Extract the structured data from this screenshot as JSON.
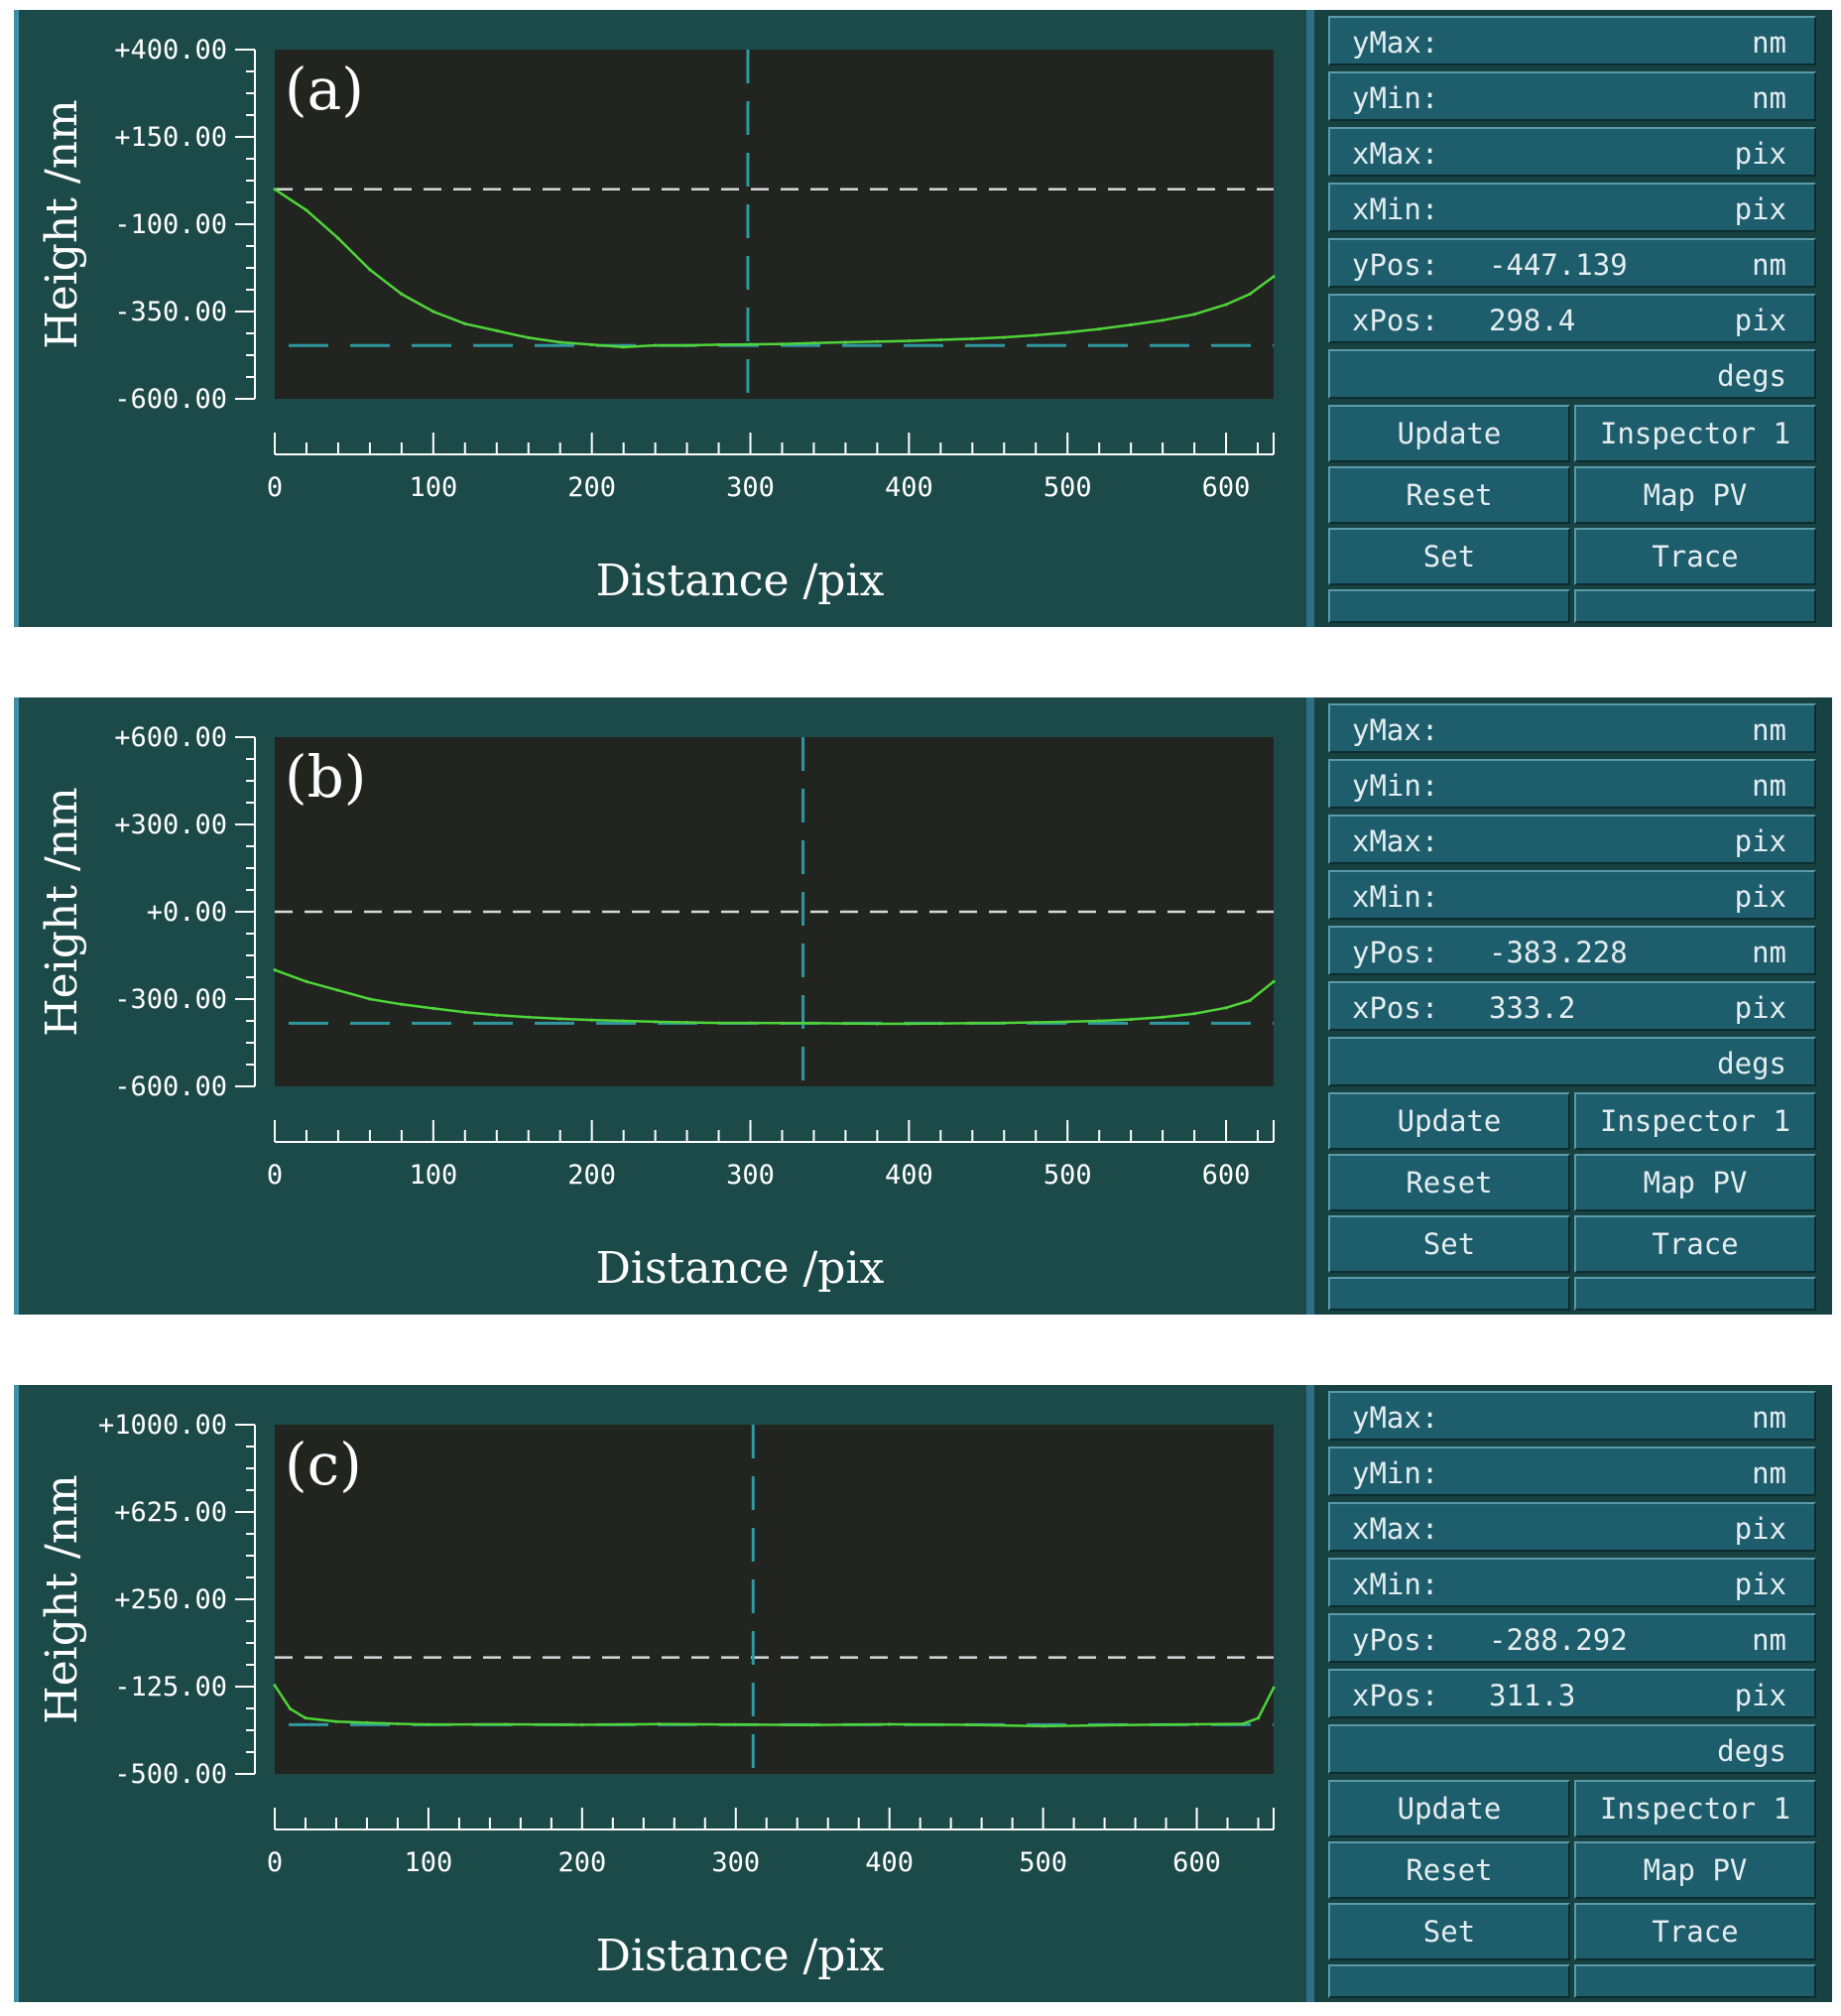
{
  "chart_data": [
    {
      "type": "line",
      "panel_label": "(a)",
      "xlabel": "Distance /pix",
      "ylabel": "Height /nm",
      "xlim": [
        0,
        630
      ],
      "ylim": [
        -600,
        400
      ],
      "x_ticks": [
        "0",
        "100",
        "200",
        "300",
        "400",
        "500",
        "600"
      ],
      "y_ticks": [
        "+400.00",
        "+150.00",
        "-100.00",
        "-350.00",
        "-600.00"
      ],
      "y_tick_values": [
        400,
        150,
        -100,
        -350,
        -600
      ],
      "ref_line_y": 0,
      "cursor": {
        "x": 298.4,
        "y": -447.139
      },
      "profile": {
        "x": [
          0,
          20,
          40,
          60,
          80,
          100,
          120,
          140,
          160,
          180,
          200,
          220,
          240,
          260,
          280,
          300,
          320,
          340,
          360,
          380,
          400,
          420,
          440,
          460,
          480,
          500,
          520,
          540,
          560,
          580,
          600,
          615,
          630
        ],
        "y": [
          0,
          -60,
          -140,
          -230,
          -300,
          -350,
          -385,
          -405,
          -425,
          -438,
          -445,
          -452,
          -447,
          -447,
          -445,
          -444,
          -443,
          -440,
          -438,
          -436,
          -434,
          -431,
          -428,
          -424,
          -418,
          -410,
          -400,
          -388,
          -375,
          -358,
          -330,
          -300,
          -250
        ]
      }
    },
    {
      "type": "line",
      "panel_label": "(b)",
      "xlabel": "Distance /pix",
      "ylabel": "Height /nm",
      "xlim": [
        0,
        630
      ],
      "ylim": [
        -600,
        600
      ],
      "x_ticks": [
        "0",
        "100",
        "200",
        "300",
        "400",
        "500",
        "600"
      ],
      "y_ticks": [
        "+600.00",
        "+300.00",
        "+0.00",
        "-300.00",
        "-600.00"
      ],
      "y_tick_values": [
        600,
        300,
        0,
        -300,
        -600
      ],
      "ref_line_y": 0,
      "cursor": {
        "x": 333.2,
        "y": -383.228
      },
      "profile": {
        "x": [
          0,
          20,
          40,
          60,
          80,
          100,
          120,
          140,
          160,
          180,
          200,
          220,
          240,
          260,
          280,
          300,
          320,
          340,
          360,
          380,
          400,
          420,
          440,
          460,
          480,
          500,
          520,
          540,
          560,
          580,
          600,
          615,
          630
        ],
        "y": [
          -200,
          -240,
          -270,
          -300,
          -318,
          -332,
          -345,
          -355,
          -362,
          -368,
          -372,
          -375,
          -378,
          -380,
          -382,
          -382,
          -383,
          -383,
          -384,
          -385,
          -385,
          -384,
          -383,
          -382,
          -380,
          -378,
          -375,
          -370,
          -362,
          -350,
          -330,
          -305,
          -240
        ]
      }
    },
    {
      "type": "line",
      "panel_label": "(c)",
      "xlabel": "Distance /pix",
      "ylabel": "Height /nm",
      "xlim": [
        0,
        650
      ],
      "ylim": [
        -500,
        1000
      ],
      "x_ticks": [
        "0",
        "100",
        "200",
        "300",
        "400",
        "500",
        "600"
      ],
      "y_ticks": [
        "+1000.00",
        "+625.00",
        "+250.00",
        "-125.00",
        "-500.00"
      ],
      "y_tick_values": [
        1000,
        625,
        250,
        -125,
        -500
      ],
      "ref_line_y": 0,
      "cursor": {
        "x": 311.3,
        "y": -288.292
      },
      "profile": {
        "x": [
          0,
          10,
          20,
          40,
          60,
          80,
          100,
          150,
          200,
          250,
          300,
          350,
          400,
          450,
          500,
          550,
          600,
          630,
          640,
          650
        ],
        "y": [
          -120,
          -220,
          -260,
          -275,
          -280,
          -285,
          -288,
          -287,
          -289,
          -286,
          -288,
          -290,
          -287,
          -289,
          -295,
          -290,
          -287,
          -285,
          -260,
          -130
        ]
      }
    }
  ],
  "side_panels": [
    {
      "rows": [
        {
          "label": "yMax:",
          "value": "",
          "unit": "nm"
        },
        {
          "label": "yMin:",
          "value": "",
          "unit": "nm"
        },
        {
          "label": "xMax:",
          "value": "",
          "unit": "pix"
        },
        {
          "label": "xMin:",
          "value": "",
          "unit": "pix"
        },
        {
          "label": "yPos:",
          "value": "-447.139",
          "unit": "nm"
        },
        {
          "label": "xPos:",
          "value": "298.4",
          "unit": "pix"
        },
        {
          "label": "",
          "value": "",
          "unit": "degs"
        }
      ],
      "buttons": [
        [
          "Update",
          "Inspector 1"
        ],
        [
          "Reset",
          "Map PV"
        ],
        [
          "Set",
          "Trace"
        ]
      ]
    },
    {
      "rows": [
        {
          "label": "yMax:",
          "value": "",
          "unit": "nm"
        },
        {
          "label": "yMin:",
          "value": "",
          "unit": "nm"
        },
        {
          "label": "xMax:",
          "value": "",
          "unit": "pix"
        },
        {
          "label": "xMin:",
          "value": "",
          "unit": "pix"
        },
        {
          "label": "yPos:",
          "value": "-383.228",
          "unit": "nm"
        },
        {
          "label": "xPos:",
          "value": "333.2",
          "unit": "pix"
        },
        {
          "label": "",
          "value": "",
          "unit": "degs"
        }
      ],
      "buttons": [
        [
          "Update",
          "Inspector 1"
        ],
        [
          "Reset",
          "Map PV"
        ],
        [
          "Set",
          "Trace"
        ]
      ]
    },
    {
      "rows": [
        {
          "label": "yMax:",
          "value": "",
          "unit": "nm"
        },
        {
          "label": "yMin:",
          "value": "",
          "unit": "nm"
        },
        {
          "label": "xMax:",
          "value": "",
          "unit": "pix"
        },
        {
          "label": "xMin:",
          "value": "",
          "unit": "pix"
        },
        {
          "label": "yPos:",
          "value": "-288.292",
          "unit": "nm"
        },
        {
          "label": "xPos:",
          "value": "311.3",
          "unit": "pix"
        },
        {
          "label": "",
          "value": "",
          "unit": "degs"
        }
      ],
      "buttons": [
        [
          "Update",
          "Inspector 1"
        ],
        [
          "Reset",
          "Map PV"
        ],
        [
          "Set",
          "Trace"
        ]
      ]
    }
  ],
  "colors": {
    "panel_bg": "#1b4a48",
    "plot_bg": "#22251f",
    "trace": "#4fd43a",
    "cursor": "#2f98a0",
    "ref_line": "#d8d8d8",
    "button_bg": "#1e5d6b"
  }
}
